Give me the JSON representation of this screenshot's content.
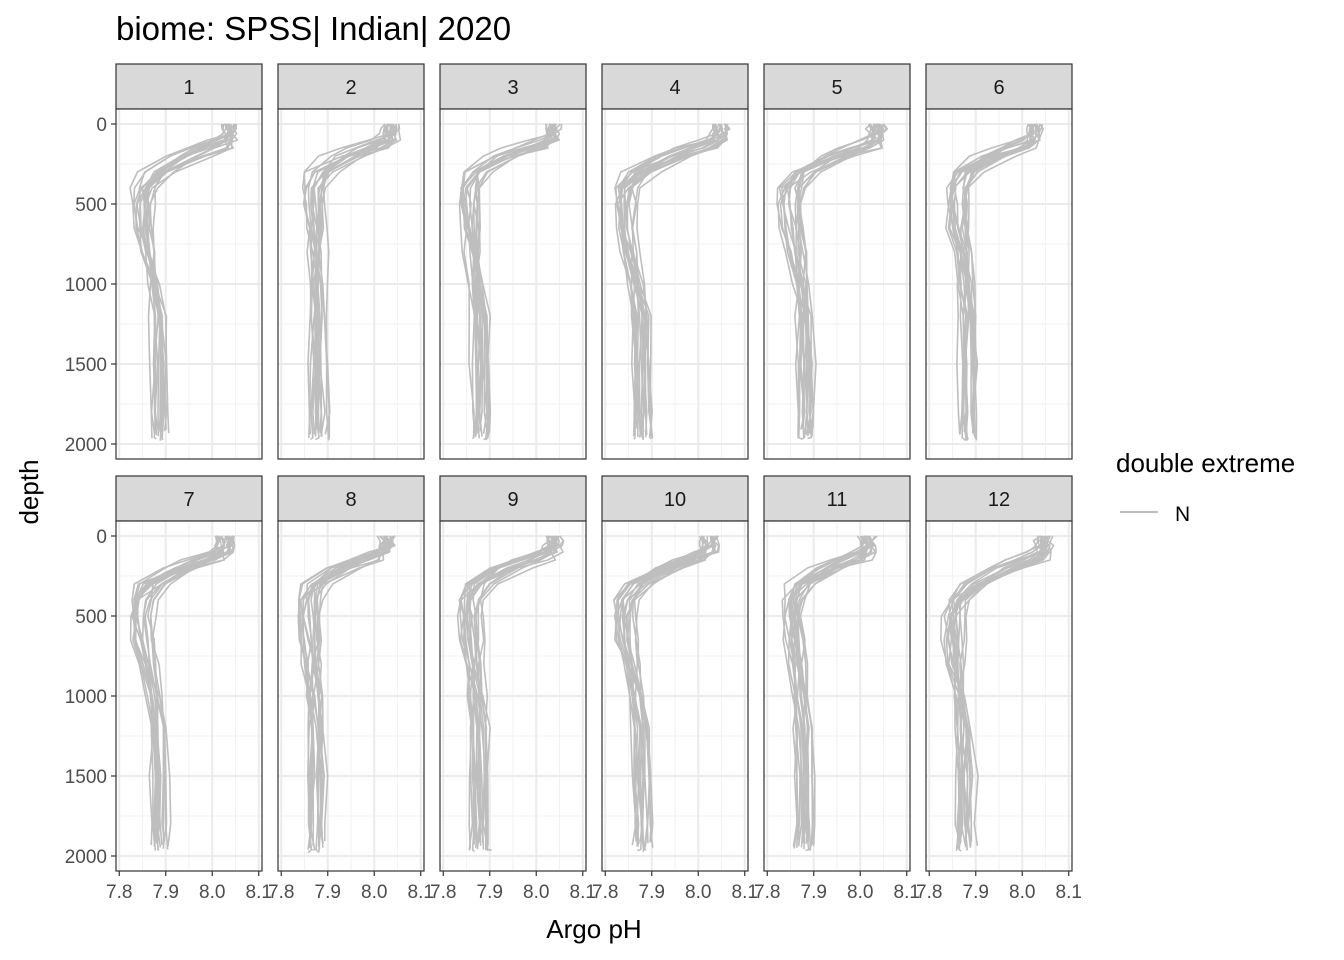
{
  "chart_data": {
    "type": "line",
    "title": "biome: SPSS| Indian| 2020",
    "xlabel": "Argo pH",
    "ylabel": "depth",
    "xlim": [
      7.8,
      8.1
    ],
    "ylim": [
      2000,
      0
    ],
    "y_reversed": true,
    "x_ticks": [
      "7.8",
      "7.9",
      "8.0",
      "8.1"
    ],
    "y_ticks": [
      "0",
      "500",
      "1000",
      "1500",
      "2000"
    ],
    "grid": true,
    "facet_by": "month",
    "panels": [
      "1",
      "2",
      "3",
      "4",
      "5",
      "6",
      "7",
      "8",
      "9",
      "10",
      "11",
      "12"
    ],
    "legend": {
      "title": "double extreme",
      "position": "right",
      "entries": [
        {
          "label": "N",
          "color": "#bebebe"
        }
      ]
    },
    "line_color": "#bebebe",
    "profile_shape": {
      "depths": [
        0,
        30,
        60,
        100,
        150,
        200,
        300,
        400,
        500,
        650,
        800,
        1000,
        1200,
        1500,
        1800,
        1960
      ],
      "by_panel": {
        "1": {
          "surface": 8.04,
          "min": 7.84,
          "deep": 7.885,
          "min_depth": 650
        },
        "2": {
          "surface": 8.04,
          "min": 7.86,
          "deep": 7.88,
          "min_depth": 550
        },
        "3": {
          "surface": 8.04,
          "min": 7.85,
          "deep": 7.88,
          "min_depth": 550
        },
        "4": {
          "surface": 8.05,
          "min": 7.83,
          "deep": 7.88,
          "min_depth": 650
        },
        "5": {
          "surface": 8.04,
          "min": 7.84,
          "deep": 7.88,
          "min_depth": 600
        },
        "6": {
          "surface": 8.03,
          "min": 7.85,
          "deep": 7.88,
          "min_depth": 550
        },
        "7": {
          "surface": 8.03,
          "min": 7.84,
          "deep": 7.89,
          "min_depth": 600
        },
        "8": {
          "surface": 8.03,
          "min": 7.85,
          "deep": 7.88,
          "min_depth": 550
        },
        "9": {
          "surface": 8.04,
          "min": 7.85,
          "deep": 7.88,
          "min_depth": 550
        },
        "10": {
          "surface": 8.03,
          "min": 7.83,
          "deep": 7.88,
          "min_depth": 650
        },
        "11": {
          "surface": 8.02,
          "min": 7.84,
          "deep": 7.88,
          "min_depth": 600
        },
        "12": {
          "surface": 8.05,
          "min": 7.84,
          "deep": 7.88,
          "min_depth": 700
        }
      },
      "profiles_per_panel": 18
    }
  }
}
